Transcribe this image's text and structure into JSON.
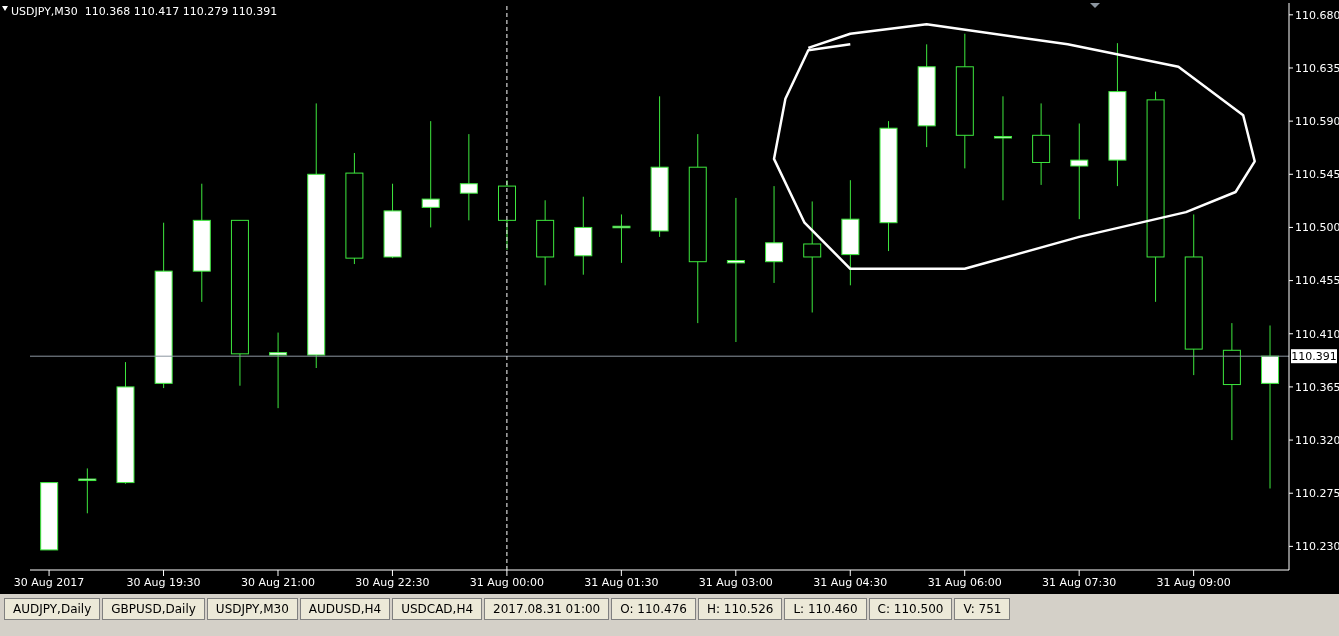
{
  "chart_data": {
    "type": "candlestick",
    "title": "USDJPY,M30  110.368 110.417 110.279 110.391",
    "categories": [
      "30 Aug 2017",
      null,
      null,
      "30 Aug 19:30",
      null,
      null,
      "30 Aug 21:00",
      null,
      null,
      "30 Aug 22:30",
      null,
      null,
      "31 Aug 00:00",
      null,
      null,
      "31 Aug 01:30",
      null,
      null,
      "31 Aug 03:00",
      null,
      null,
      "31 Aug 04:30",
      null,
      null,
      "31 Aug 06:00",
      null,
      null,
      "31 Aug 07:30",
      null,
      null,
      "31 Aug 09:00",
      null,
      null
    ],
    "ohlc": [
      [
        110.227,
        110.284,
        110.227,
        110.284
      ],
      [
        110.286,
        110.296,
        110.258,
        110.287
      ],
      [
        110.284,
        110.386,
        110.283,
        110.365
      ],
      [
        110.368,
        110.504,
        110.364,
        110.463
      ],
      [
        110.463,
        110.537,
        110.437,
        110.506
      ],
      [
        110.506,
        110.506,
        110.366,
        110.393
      ],
      [
        110.392,
        110.411,
        110.347,
        110.394
      ],
      [
        110.392,
        110.605,
        110.381,
        110.545
      ],
      [
        110.546,
        110.563,
        110.469,
        110.474
      ],
      [
        110.475,
        110.537,
        110.474,
        110.514
      ],
      [
        110.517,
        110.59,
        110.5,
        110.524
      ],
      [
        110.529,
        110.579,
        110.506,
        110.537
      ],
      [
        110.535,
        110.54,
        110.481,
        110.506
      ],
      [
        110.506,
        110.523,
        110.451,
        110.475
      ],
      [
        110.476,
        110.526,
        110.46,
        110.5
      ],
      [
        110.501,
        110.511,
        110.47,
        110.501
      ],
      [
        110.497,
        110.611,
        110.492,
        110.551
      ],
      [
        110.551,
        110.579,
        110.419,
        110.471
      ],
      [
        110.47,
        110.525,
        110.403,
        110.472
      ],
      [
        110.471,
        110.535,
        110.453,
        110.487
      ],
      [
        110.486,
        110.522,
        110.428,
        110.475
      ],
      [
        110.477,
        110.54,
        110.451,
        110.507
      ],
      [
        110.504,
        110.59,
        110.48,
        110.584
      ],
      [
        110.586,
        110.655,
        110.568,
        110.636
      ],
      [
        110.636,
        110.664,
        110.55,
        110.578
      ],
      [
        110.577,
        110.611,
        110.523,
        110.577
      ],
      [
        110.578,
        110.605,
        110.536,
        110.555
      ],
      [
        110.552,
        110.588,
        110.507,
        110.557
      ],
      [
        110.557,
        110.656,
        110.535,
        110.615
      ],
      [
        110.608,
        110.615,
        110.437,
        110.475
      ],
      [
        110.475,
        110.511,
        110.375,
        110.397
      ],
      [
        110.396,
        110.419,
        110.32,
        110.367
      ],
      [
        110.368,
        110.417,
        110.279,
        110.391
      ]
    ],
    "color": "#3ee83e",
    "ylim": [
      110.21,
      110.69
    ],
    "yticks": [
      {
        "value": 110.68,
        "label": "110.680"
      },
      {
        "value": 110.635,
        "label": "110.635"
      },
      {
        "value": 110.59,
        "label": "110.590"
      },
      {
        "value": 110.545,
        "label": "110.545"
      },
      {
        "value": 110.5,
        "label": "110.500"
      },
      {
        "value": 110.455,
        "label": "110.455"
      },
      {
        "value": 110.41,
        "label": "110.410"
      },
      {
        "value": 110.365,
        "label": "110.365"
      },
      {
        "value": 110.32,
        "label": "110.320"
      },
      {
        "value": 110.275,
        "label": "110.275"
      },
      {
        "value": 110.23,
        "label": "110.230"
      }
    ],
    "ref_lines": [
      {
        "axis": "y",
        "value": 110.391,
        "label": "110.391",
        "color": "#8c96a0",
        "line_style": "solid"
      },
      {
        "axis": "x",
        "value": "31 Aug 00:00",
        "color": "#ffffff",
        "line_style": "dashed"
      }
    ],
    "annotations": [
      "AUDJPY,Daily",
      "GBPUSD,Daily",
      "USDJPY,M30",
      "AUDUSD,H4",
      "USDCAD,H4",
      "2017.08.31 01:00",
      "O: 110.476",
      "H: 110.526",
      "L: 110.460",
      "C: 110.500",
      "V: 751"
    ]
  }
}
